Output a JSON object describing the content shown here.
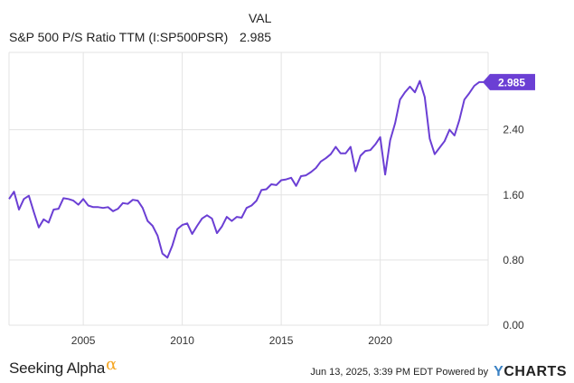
{
  "legend": {
    "column_header": "VAL",
    "series_name": "S&P 500 P/S Ratio TTM (I:SP500PSR)",
    "series_value": "2.985"
  },
  "chart_data": {
    "type": "line",
    "ylim": [
      0,
      3.35
    ],
    "xlim": [
      2001.25,
      2025.45
    ],
    "y_ticks": [
      "0.00",
      "0.80",
      "1.60",
      "2.40"
    ],
    "x_ticks": [
      "2005",
      "2010",
      "2015",
      "2020"
    ],
    "last_value_label": "2.985",
    "colors": {
      "line": "#6b3fd4",
      "label_bg": "#6b3fd4",
      "grid": "#e3e3e3"
    },
    "grid": true,
    "series": [
      {
        "x": [
          2001.25,
          2001.5,
          2001.75,
          2002.0,
          2002.25,
          2002.5,
          2002.75,
          2003.0,
          2003.25,
          2003.5,
          2003.75,
          2004.0,
          2004.25,
          2004.5,
          2004.75,
          2005.0,
          2005.25,
          2005.5,
          2005.75,
          2006.0,
          2006.25,
          2006.5,
          2006.75,
          2007.0,
          2007.25,
          2007.5,
          2007.75,
          2008.0,
          2008.25,
          2008.5,
          2008.75,
          2009.0,
          2009.25,
          2009.5,
          2009.75,
          2010.0,
          2010.25,
          2010.5,
          2010.75,
          2011.0,
          2011.25,
          2011.5,
          2011.75,
          2012.0,
          2012.25,
          2012.5,
          2012.75,
          2013.0,
          2013.25,
          2013.5,
          2013.75,
          2014.0,
          2014.25,
          2014.5,
          2014.75,
          2015.0,
          2015.25,
          2015.5,
          2015.75,
          2016.0,
          2016.25,
          2016.5,
          2016.75,
          2017.0,
          2017.25,
          2017.5,
          2017.75,
          2018.0,
          2018.25,
          2018.5,
          2018.75,
          2019.0,
          2019.25,
          2019.5,
          2019.75,
          2020.0,
          2020.25,
          2020.5,
          2020.75,
          2021.0,
          2021.25,
          2021.5,
          2021.75,
          2022.0,
          2022.25,
          2022.5,
          2022.75,
          2023.0,
          2023.25,
          2023.5,
          2023.75,
          2024.0,
          2024.25,
          2024.5,
          2024.75,
          2025.0,
          2025.25
        ],
        "values": [
          1.55,
          1.64,
          1.42,
          1.55,
          1.59,
          1.39,
          1.2,
          1.3,
          1.26,
          1.42,
          1.43,
          1.56,
          1.55,
          1.53,
          1.48,
          1.55,
          1.47,
          1.45,
          1.45,
          1.44,
          1.45,
          1.4,
          1.43,
          1.5,
          1.49,
          1.54,
          1.53,
          1.44,
          1.28,
          1.22,
          1.1,
          0.88,
          0.83,
          0.98,
          1.18,
          1.23,
          1.25,
          1.12,
          1.22,
          1.31,
          1.35,
          1.31,
          1.13,
          1.21,
          1.33,
          1.28,
          1.33,
          1.32,
          1.44,
          1.47,
          1.53,
          1.66,
          1.67,
          1.73,
          1.72,
          1.78,
          1.79,
          1.81,
          1.71,
          1.83,
          1.84,
          1.88,
          1.93,
          2.01,
          2.05,
          2.1,
          2.19,
          2.11,
          2.11,
          2.19,
          1.89,
          2.08,
          2.14,
          2.15,
          2.22,
          2.31,
          1.85,
          2.27,
          2.48,
          2.77,
          2.86,
          2.93,
          2.86,
          3.0,
          2.8,
          2.29,
          2.1,
          2.18,
          2.26,
          2.4,
          2.33,
          2.52,
          2.77,
          2.85,
          2.94,
          2.985,
          2.985
        ]
      }
    ]
  },
  "footer": {
    "logo_text": "Seeking Alpha",
    "logo_symbol": "α",
    "timestamp_text": "Jun 13, 2025, 3:39 PM EDT Powered by",
    "brand_mark": "Y",
    "brand_rest": "CHARTS"
  }
}
